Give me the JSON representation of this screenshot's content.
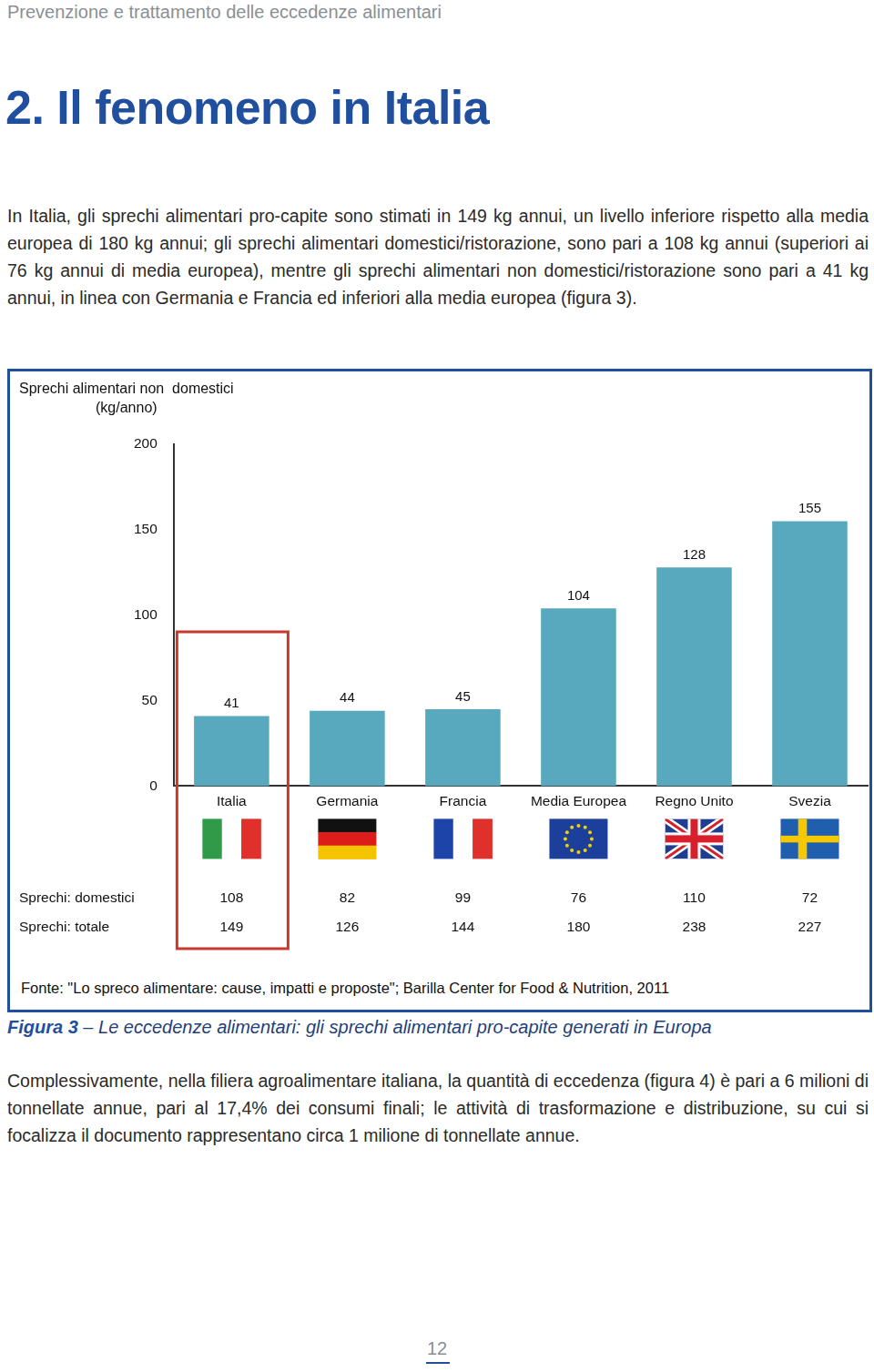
{
  "page": {
    "header": "Prevenzione e trattamento delle eccedenze alimentari",
    "title": "2. Il fenomeno in Italia",
    "paragraphs": [
      "In Italia, gli sprechi alimentari pro-capite sono stimati in 149 kg annui, un livello inferiore rispetto alla media europea di 180 kg annui; gli sprechi alimentari domestici/ristorazione, sono pari a 108 kg annui (superiori ai 76 kg annui di media europea), mentre gli sprechi alimentari non domestici/ristorazione sono pari a 41 kg annui, in linea con Germania e Francia ed inferiori alla media europea (figura 3).",
      "Complessivamente, nella filiera agroalimentare italiana, la quantità di eccedenza (figura 4) è pari a 6 milioni di tonnellate annue, pari al 17,4% dei consumi finali; le attività di trasformazione e distribuzione, su cui si focalizza il documento rappresentano circa 1 milione di tonnellate annue."
    ],
    "source": "Fonte: \"Lo spreco alimentare: cause, impatti e proposte\"; Barilla Center for Food & Nutrition, 2011",
    "caption": {
      "label": "Figura 3",
      "text": " – Le eccedenze alimentari: gli sprechi alimentari pro-capite generati in Europa"
    },
    "page_number": "12"
  },
  "chart_data": {
    "type": "bar",
    "ylabel": [
      "Sprechi alimentari non  domestici",
      "(kg/anno)"
    ],
    "categories": [
      "Italia",
      "Germania",
      "Francia",
      "Media Europea",
      "Regno Unito",
      "Svezia"
    ],
    "values": [
      41,
      44,
      45,
      104,
      128,
      155
    ],
    "color": "#58a9bd",
    "ylim": [
      0,
      200
    ],
    "yticks": [
      0,
      50,
      100,
      150,
      200
    ],
    "grid": false,
    "data_labels": true,
    "table": [
      {
        "label": "Sprechi: domestici",
        "values": [
          108,
          82,
          99,
          76,
          110,
          72
        ]
      },
      {
        "label": "Sprechi: totale",
        "values": [
          149,
          126,
          144,
          180,
          238,
          227
        ]
      }
    ]
  }
}
